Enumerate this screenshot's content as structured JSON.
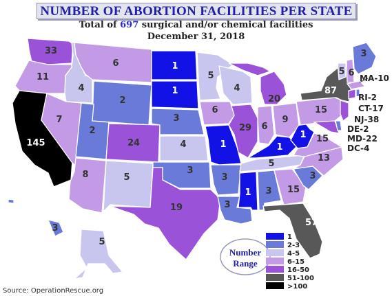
{
  "header": {
    "title": "NUMBER OF ABORTION FACILITIES PER STATE",
    "subtitle_pre": "Total of ",
    "subtitle_num": "697",
    "subtitle_post": " surgical and/or chemical facilities",
    "date": "December 31, 2018"
  },
  "source": "Source: OperationRescue.org",
  "colors": {
    "c1": "#1212e6",
    "c2_3": "#6a7ad8",
    "c4_5": "#c8c6ee",
    "c6_15": "#c39ae6",
    "c16_50": "#9a52d8",
    "c51_100": "#585858",
    "c_over100": "#000000"
  },
  "legend": {
    "title_line1": "Number",
    "title_line2": "Range",
    "items": [
      {
        "label": "1",
        "color": "#1212e6"
      },
      {
        "label": "2-3",
        "color": "#6a7ad8"
      },
      {
        "label": "4-5",
        "color": "#c8c6ee"
      },
      {
        "label": "6-15",
        "color": "#c39ae6"
      },
      {
        "label": "16-50",
        "color": "#9a52d8"
      },
      {
        "label": "51-100",
        "color": "#585858"
      },
      {
        "label": ">100",
        "color": "#000000"
      }
    ]
  },
  "states": {
    "WA": "33",
    "OR": "11",
    "CA": "145",
    "ID": "4",
    "NV": "7",
    "MT": "6",
    "WY": "2",
    "UT": "2",
    "AZ": "8",
    "CO": "24",
    "NM": "5",
    "ND": "1",
    "SD": "1",
    "NE": "3",
    "KS": "4",
    "OK": "3",
    "TX": "19",
    "MN": "5",
    "IA": "6",
    "MO": "1",
    "AR": "3",
    "LA": "3",
    "WI": "4",
    "IL": "29",
    "MI": "20",
    "IN": "6",
    "KY": "1",
    "TN": "5",
    "MS": "1",
    "AL": "3",
    "OH": "9",
    "WV": "1",
    "VA": "15",
    "NC": "13",
    "SC": "3",
    "GA": "15",
    "FL": "57",
    "PA": "15",
    "NY": "87",
    "VT": "5",
    "NH": "6",
    "ME": "3",
    "AK": "5",
    "HI": "3"
  },
  "side_labels": [
    "MA-10",
    "RI-2",
    "CT-17",
    "NJ-38",
    "DE-2",
    "MD-22",
    "DC-4"
  ]
}
